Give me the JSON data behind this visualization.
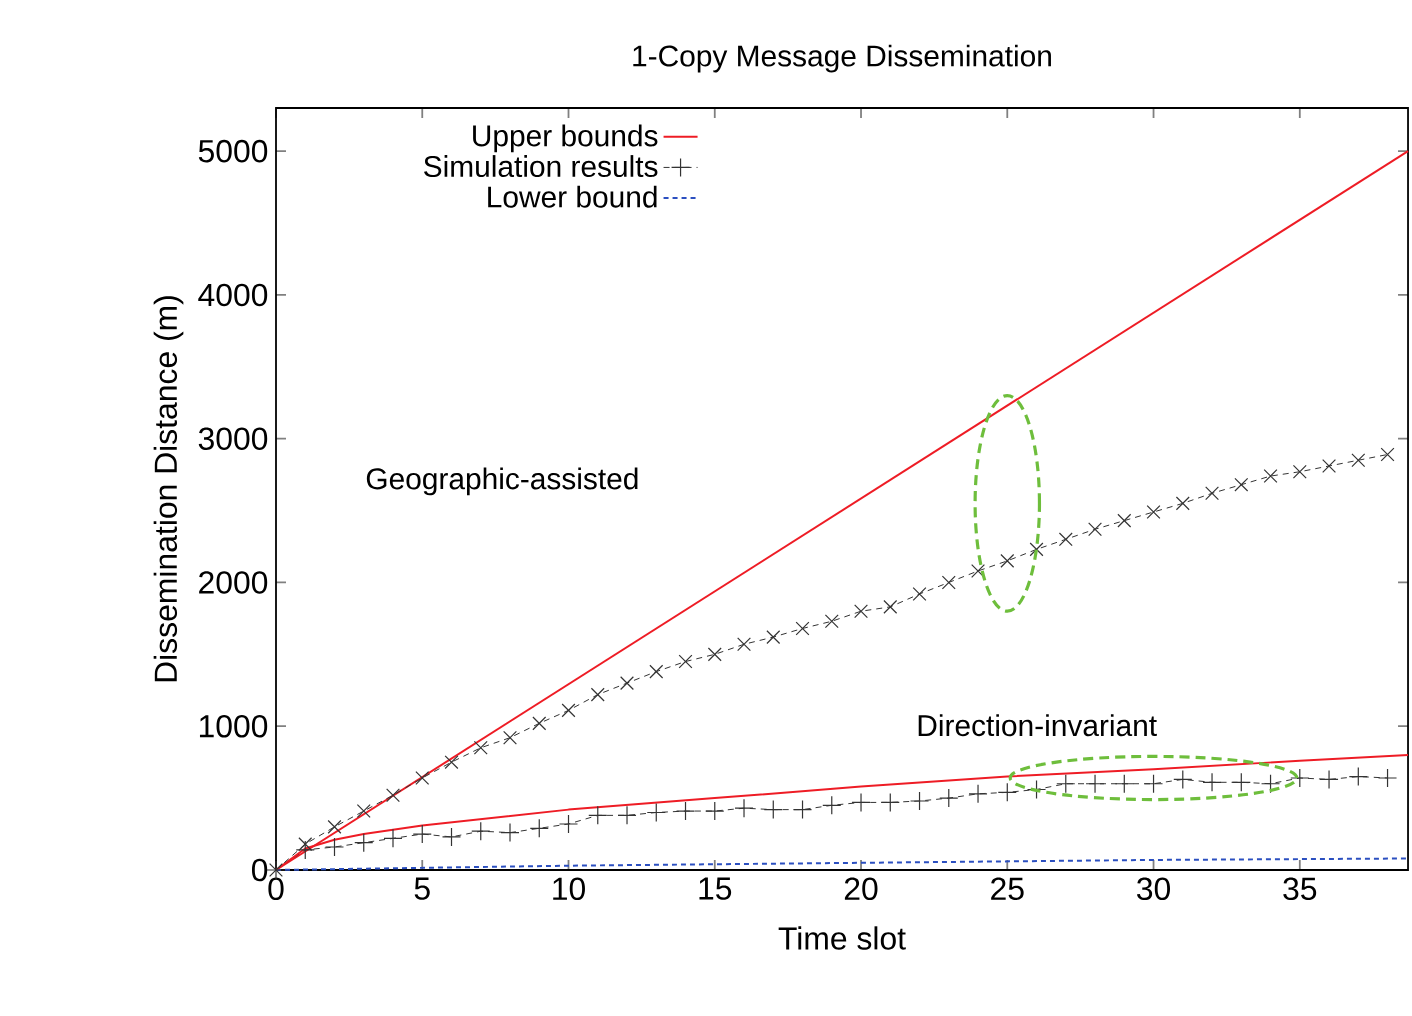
{
  "chart_data": {
    "type": "line",
    "title": "1-Copy Message Dissemination",
    "xlabel": "Time slot",
    "ylabel": "Dissemination Distance (m)",
    "xlim": [
      0,
      38.7
    ],
    "xticks": [
      0,
      5,
      10,
      15,
      20,
      25,
      30,
      35
    ],
    "ylim": [
      0,
      5300
    ],
    "yticks": [
      0,
      1000,
      2000,
      3000,
      4000,
      5000
    ],
    "grid": false,
    "legend": "top left",
    "annotations": [
      "Geographic-assisted",
      "Direction-invariant"
    ],
    "series": [
      {
        "name": "Upper bounds",
        "color": "#ee1c25",
        "line_style": "solid",
        "marker": "none",
        "x": [
          0,
          38.7
        ],
        "values": [
          0,
          5000
        ]
      },
      {
        "name": "Simulation results",
        "color": "#333333",
        "line_style": "dashed",
        "marker": "plus",
        "x": [
          0,
          1,
          2,
          3,
          4,
          5,
          6,
          7,
          8,
          9,
          10,
          11,
          12,
          13,
          14,
          15,
          16,
          17,
          18,
          19,
          20,
          21,
          22,
          23,
          24,
          25,
          26,
          27,
          28,
          29,
          30,
          31,
          32,
          33,
          34,
          35,
          36,
          37,
          38
        ],
        "values": [
          0,
          140,
          160,
          190,
          220,
          250,
          230,
          270,
          260,
          290,
          320,
          380,
          380,
          400,
          410,
          410,
          430,
          420,
          420,
          450,
          470,
          470,
          480,
          500,
          530,
          540,
          560,
          600,
          600,
          600,
          600,
          630,
          610,
          610,
          600,
          640,
          630,
          650,
          640
        ]
      },
      {
        "name": "Lower bound",
        "color": "#2b4fc0",
        "line_style": "dotted",
        "marker": "none",
        "x": [
          0,
          10,
          20,
          30,
          38.7
        ],
        "values": [
          0,
          30,
          50,
          70,
          80
        ]
      },
      {
        "color": "#ee1c25",
        "line_style": "solid",
        "marker": "none",
        "x": [
          0,
          1,
          2,
          3,
          5,
          10,
          15,
          20,
          25,
          30,
          35,
          38.7
        ],
        "values": [
          0,
          150,
          210,
          250,
          310,
          420,
          500,
          580,
          650,
          700,
          760,
          800
        ]
      },
      {
        "color": "#333333",
        "line_style": "dashed",
        "marker": "cross",
        "x": [
          0,
          1,
          2,
          3,
          4,
          5,
          6,
          7,
          8,
          9,
          10,
          11,
          12,
          13,
          14,
          15,
          16,
          17,
          18,
          19,
          20,
          21,
          22,
          23,
          24,
          25,
          26,
          27,
          28,
          29,
          30,
          31,
          32,
          33,
          34,
          35,
          36,
          37,
          38
        ],
        "values": [
          0,
          180,
          300,
          410,
          520,
          640,
          750,
          850,
          920,
          1020,
          1110,
          1220,
          1300,
          1380,
          1450,
          1500,
          1570,
          1620,
          1680,
          1730,
          1800,
          1830,
          1920,
          2000,
          2080,
          2150,
          2230,
          2300,
          2370,
          2430,
          2490,
          2550,
          2620,
          2680,
          2740,
          2770,
          2810,
          2850,
          2890
        ]
      }
    ]
  }
}
